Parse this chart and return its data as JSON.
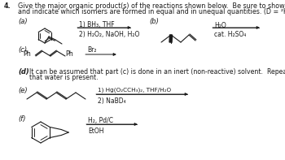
{
  "bg_color": "#ffffff",
  "text_color": "#1a1a1a",
  "fs_header": 5.8,
  "fs_label": 6.0,
  "fs_reagent": 5.5,
  "fs_struct": 5.8,
  "number": "4.",
  "header1": "Give the major organic product(s) of the reactions shown below.  Be sure to show all stereoisomers formed,",
  "header2": "and indicate which isomers are formed in equal and in unequal quantities. (D = ²H)",
  "label_a": "(a)",
  "label_b": "(b)",
  "label_c": "(c)",
  "label_d": "(d)",
  "label_d_text1": "It can be assumed that part (c) is done in an inert (non-reactive) solvent.  Repeat part (c), but now assume",
  "label_d_text2": "that water is present.",
  "label_e": "(e)",
  "label_f": "(f)",
  "reagent_a1": "1) BH₃, THF",
  "reagent_a2": "2) H₂O₂, NaOH, H₂O",
  "reagent_b1": "H₂O",
  "reagent_b2": "cat. H₂SO₄",
  "reagent_c": "Br₂",
  "reagent_e1": "1) Hg(O₂CCH₃)₂, THF/H₂O",
  "reagent_e2": "2) NaBD₄",
  "reagent_f1": "H₂, Pd/C",
  "reagent_f2": "EtOH"
}
